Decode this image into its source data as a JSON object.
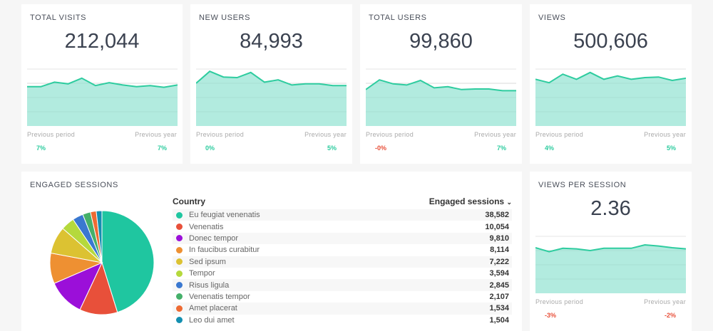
{
  "colors": {
    "accent": "#2ecc9f",
    "fill": "#b2ebdf",
    "positive": "#2ecc9f",
    "negative": "#e8503a"
  },
  "kpis": [
    {
      "title": "TOTAL VISITS",
      "value": "212,044",
      "prev_period_label": "Previous period",
      "prev_period": "7%",
      "prev_year_label": "Previous year",
      "prev_year": "7%",
      "pp_neg": false,
      "py_neg": false,
      "spark": [
        69,
        69,
        77,
        74,
        84,
        71,
        76,
        72,
        69,
        71,
        68,
        72
      ]
    },
    {
      "title": "NEW USERS",
      "value": "84,993",
      "prev_period_label": "Previous period",
      "prev_period": "0%",
      "prev_year_label": "Previous year",
      "prev_year": "5%",
      "pp_neg": false,
      "py_neg": false,
      "spark": [
        75,
        96,
        86,
        85,
        94,
        77,
        81,
        72,
        74,
        74,
        71,
        71
      ]
    },
    {
      "title": "TOTAL USERS",
      "value": "99,860",
      "prev_period_label": "Previous period",
      "prev_period": "-0%",
      "prev_year_label": "Previous year",
      "prev_year": "7%",
      "pp_neg": true,
      "py_neg": false,
      "spark": [
        64,
        81,
        74,
        72,
        80,
        67,
        69,
        64,
        65,
        65,
        62,
        62
      ]
    },
    {
      "title": "VIEWS",
      "value": "500,606",
      "prev_period_label": "Previous period",
      "prev_period": "4%",
      "prev_year_label": "Previous year",
      "prev_year": "5%",
      "pp_neg": false,
      "py_neg": false,
      "spark": [
        82,
        76,
        91,
        82,
        94,
        82,
        88,
        82,
        85,
        86,
        80,
        84
      ]
    },
    {
      "title": "VIEWS PER SESSION",
      "value": "2.36",
      "prev_period_label": "Previous period",
      "prev_period": "-3%",
      "prev_year_label": "Previous year",
      "prev_year": "-2%",
      "pp_neg": true,
      "py_neg": true,
      "spark": [
        80,
        73,
        79,
        78,
        75,
        79,
        79,
        79,
        85,
        83,
        80,
        78
      ]
    }
  ],
  "engaged": {
    "title": "ENGAGED SESSIONS",
    "col_country": "Country",
    "col_sessions": "Engaged sessions",
    "sort_icon": "chevron-down-icon",
    "rows": [
      {
        "name": "Eu feugiat venenatis",
        "value": "38,582",
        "n": 38582,
        "color": "#1fc6a0"
      },
      {
        "name": "Venenatis",
        "value": "10,054",
        "n": 10054,
        "color": "#e8503a"
      },
      {
        "name": "Donec tempor",
        "value": "9,810",
        "n": 9810,
        "color": "#9b0fd9"
      },
      {
        "name": "In faucibus curabitur",
        "value": "8,114",
        "n": 8114,
        "color": "#ee9032"
      },
      {
        "name": "Sed ipsum",
        "value": "7,222",
        "n": 7222,
        "color": "#dcc232"
      },
      {
        "name": "Tempor",
        "value": "3,594",
        "n": 3594,
        "color": "#b5d93c"
      },
      {
        "name": "Risus ligula",
        "value": "2,845",
        "n": 2845,
        "color": "#3a78d0"
      },
      {
        "name": "Venenatis tempor",
        "value": "2,107",
        "n": 2107,
        "color": "#45b06a"
      },
      {
        "name": "Amet placerat",
        "value": "1,534",
        "n": 1534,
        "color": "#ee6a32"
      },
      {
        "name": "Leo dui amet",
        "value": "1,504",
        "n": 1504,
        "color": "#138fb0"
      }
    ]
  }
}
